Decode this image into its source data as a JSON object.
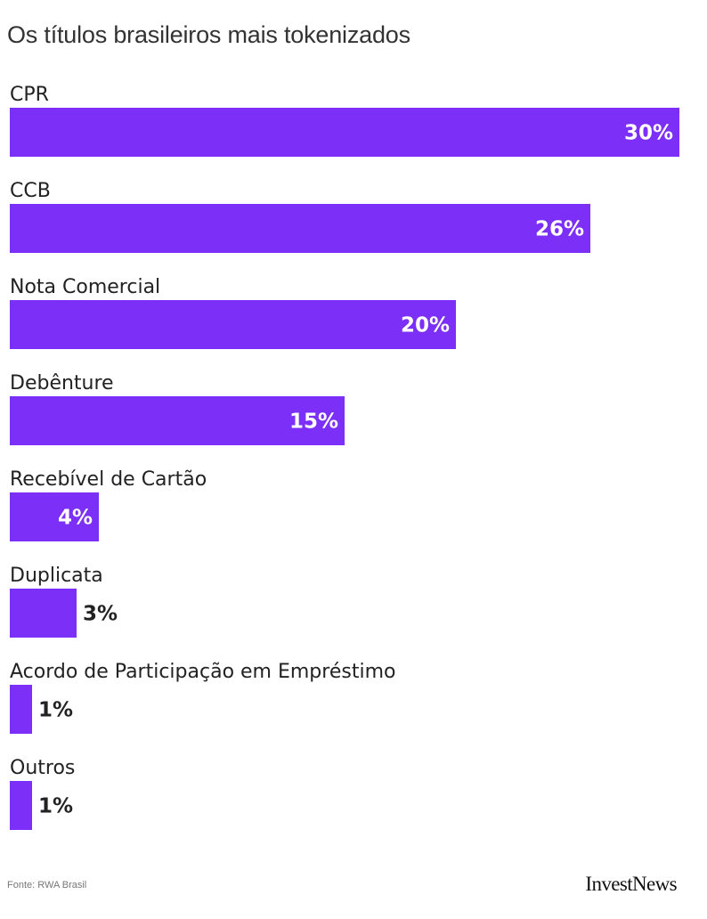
{
  "title": "Os títulos brasileiros mais tokenizados",
  "source": "Fonte: RWA Brasil",
  "logo": "InvestNews",
  "colors": {
    "bar": "#7b2ff7",
    "label_inside": "#ffffff",
    "label_outside": "#222222"
  },
  "chart_data": {
    "type": "bar",
    "orientation": "horizontal",
    "title": "Os títulos brasileiros mais tokenizados",
    "categories": [
      "CPR",
      "CCB",
      "Nota Comercial",
      "Debênture",
      "Recebível de Cartão",
      "Duplicata",
      "Acordo de Participação em Empréstimo",
      "Outros"
    ],
    "values": [
      30,
      26,
      20,
      15,
      4,
      3,
      1,
      1
    ],
    "value_labels": [
      "30%",
      "26%",
      "20%",
      "15%",
      "4%",
      "3%",
      "1%",
      "1%"
    ],
    "unit": "%",
    "xlim": [
      0,
      30
    ],
    "grid": false,
    "legend": "none"
  }
}
